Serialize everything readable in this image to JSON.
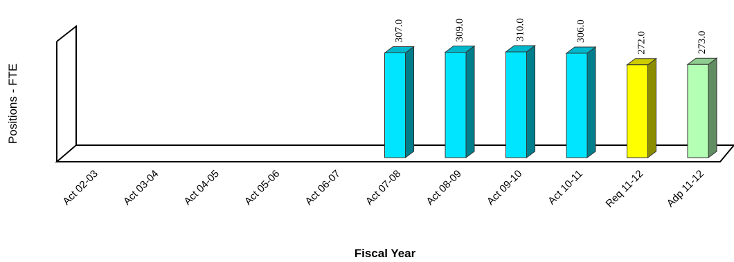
{
  "chart_data": {
    "type": "bar",
    "style": "3d",
    "title": "",
    "xlabel": "Fiscal Year",
    "ylabel": "Positions - FTE",
    "categories": [
      "Act 02-03",
      "Act 03-04",
      "Act 04-05",
      "Act 05-06",
      "Act 06-07",
      "Act 07-08",
      "Act 08-09",
      "Act 09-10",
      "Act 10-11",
      "Req 11-12",
      "Adp 11-12"
    ],
    "values": [
      null,
      null,
      null,
      null,
      null,
      307.0,
      309.0,
      310.0,
      306.0,
      272.0,
      273.0
    ],
    "data_labels": [
      "",
      "",
      "",
      "",
      "",
      "307.0",
      "309.0",
      "310.0",
      "306.0",
      "272.0",
      "273.0"
    ],
    "bar_colors": {
      "Act 07-08": "#00e5ff",
      "Act 08-09": "#00e5ff",
      "Act 09-10": "#00e5ff",
      "Act 10-11": "#00e5ff",
      "Req 11-12": "#ffff00",
      "Adp 11-12": "#b3ffb3"
    },
    "grid": false,
    "legend": "none"
  }
}
